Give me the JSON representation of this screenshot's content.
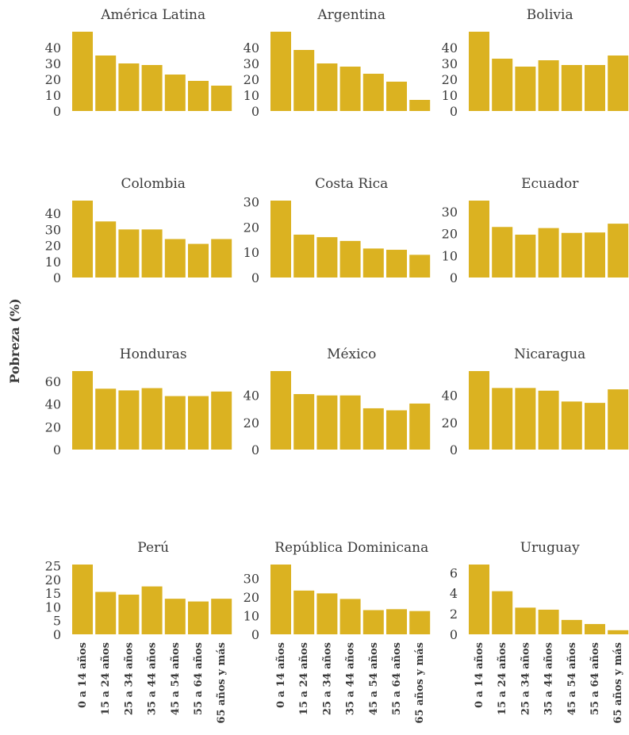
{
  "chart_data": {
    "type": "bar",
    "ylabel": "Pobreza (%)",
    "xlabel": "",
    "bar_color": "#DBB221",
    "categories": [
      "0 a 14 años",
      "15 a 24 años",
      "25 a 34 años",
      "35 a 44 años",
      "45 a 54 años",
      "55 a 64 años",
      "65 años y más"
    ],
    "panels": [
      {
        "title": "América Latina",
        "ylim": [
          0,
          50
        ],
        "yticks": [
          0,
          10,
          20,
          30,
          40
        ],
        "values": [
          50,
          35,
          30,
          29,
          23,
          19,
          16
        ]
      },
      {
        "title": "Argentina",
        "ylim": [
          0,
          50
        ],
        "yticks": [
          0,
          10,
          20,
          30,
          40
        ],
        "values": [
          50,
          38.5,
          30,
          28,
          23.5,
          18.5,
          7
        ]
      },
      {
        "title": "Bolivia",
        "ylim": [
          0,
          50
        ],
        "yticks": [
          0,
          10,
          20,
          30,
          40
        ],
        "values": [
          50,
          33,
          28,
          32,
          29,
          29,
          35
        ]
      },
      {
        "title": "Colombia",
        "ylim": [
          0,
          48
        ],
        "yticks": [
          0,
          10,
          20,
          30,
          40
        ],
        "values": [
          48,
          35,
          30,
          30,
          24,
          21,
          24
        ]
      },
      {
        "title": "Costa Rica",
        "ylim": [
          0,
          30.5
        ],
        "yticks": [
          0,
          10,
          20,
          30
        ],
        "values": [
          30.5,
          17,
          16,
          14.5,
          11.5,
          11,
          9
        ]
      },
      {
        "title": "Ecuador",
        "ylim": [
          0,
          35
        ],
        "yticks": [
          0,
          10,
          20,
          30
        ],
        "values": [
          35,
          23,
          19.5,
          22.5,
          20.3,
          20.5,
          24.5
        ]
      },
      {
        "title": "Honduras",
        "ylim": [
          0,
          69
        ],
        "yticks": [
          0,
          20,
          40,
          60
        ],
        "values": [
          69,
          53.5,
          52,
          54,
          47,
          47,
          51
        ]
      },
      {
        "title": "México",
        "ylim": [
          0,
          58
        ],
        "yticks": [
          0,
          20,
          40
        ],
        "values": [
          58,
          41,
          40,
          40,
          30.5,
          29,
          34
        ]
      },
      {
        "title": "Nicaragua",
        "ylim": [
          0,
          58
        ],
        "yticks": [
          0,
          20,
          40
        ],
        "values": [
          58,
          45.5,
          45.5,
          43.5,
          35.5,
          34.5,
          44.5
        ]
      },
      {
        "title": "Perú",
        "ylim": [
          0,
          25.5
        ],
        "yticks": [
          0,
          5,
          10,
          15,
          20,
          25
        ],
        "values": [
          25.5,
          15.5,
          14.5,
          17.5,
          13,
          12,
          13
        ]
      },
      {
        "title": "República Dominicana",
        "ylim": [
          0,
          37.5
        ],
        "yticks": [
          0,
          10,
          20,
          30
        ],
        "values": [
          37.5,
          23.5,
          22,
          19,
          13,
          13.5,
          12.5
        ]
      },
      {
        "title": "Uruguay",
        "ylim": [
          0,
          6.8
        ],
        "yticks": [
          0,
          2,
          4,
          6
        ],
        "values": [
          6.8,
          4.2,
          2.6,
          2.4,
          1.4,
          1.0,
          0.4
        ]
      }
    ]
  }
}
